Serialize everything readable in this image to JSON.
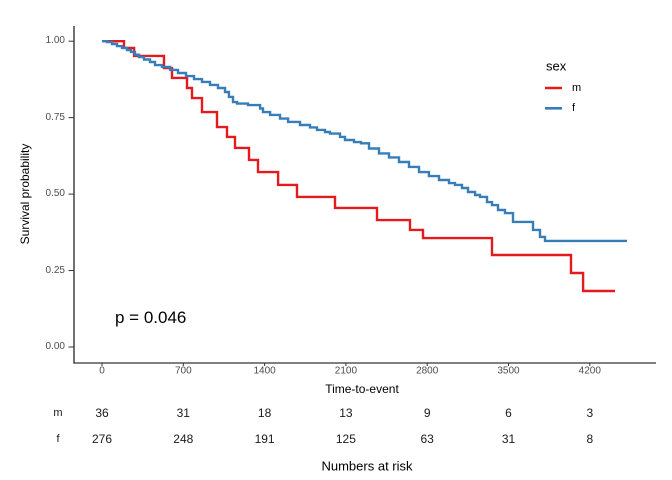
{
  "chart_data": {
    "type": "line",
    "subtype": "kaplan_meier_step_curves",
    "title": "",
    "xlabel": "Time-to-event",
    "ylabel": "Survival probability",
    "x_ticks": [
      0,
      700,
      1400,
      2100,
      2800,
      3500,
      4200
    ],
    "x_tick_labels": [
      "0",
      "700",
      "1400",
      "2100",
      "2800",
      "3500",
      "4200"
    ],
    "y_ticks": [
      1.0,
      0.75,
      0.5,
      0.25,
      0.0
    ],
    "y_tick_labels": [
      "1.00",
      "0.75",
      "0.50",
      "0.25",
      "0.00"
    ],
    "xlim": [
      0,
      4520
    ],
    "ylim": [
      0,
      1
    ],
    "grid": false,
    "legend": {
      "title": "sex",
      "position": "right",
      "items": [
        {
          "label": "m",
          "color": "#E41A1C"
        },
        {
          "label": "f",
          "color": "#377EB8"
        }
      ]
    },
    "annotation": {
      "p_value": "p = 0.046"
    },
    "series": [
      {
        "name": "m",
        "color": "#E41A1C",
        "points": [
          [
            0,
            1.0
          ],
          [
            189,
            0.978
          ],
          [
            276,
            0.952
          ],
          [
            534,
            0.912
          ],
          [
            603,
            0.88
          ],
          [
            732,
            0.847
          ],
          [
            775,
            0.814
          ],
          [
            861,
            0.768
          ],
          [
            990,
            0.719
          ],
          [
            1076,
            0.687
          ],
          [
            1145,
            0.651
          ],
          [
            1266,
            0.612
          ],
          [
            1343,
            0.572
          ],
          [
            1516,
            0.53
          ],
          [
            1679,
            0.491
          ],
          [
            2006,
            0.455
          ],
          [
            2368,
            0.415
          ],
          [
            2652,
            0.383
          ],
          [
            2764,
            0.356
          ],
          [
            3358,
            0.301
          ],
          [
            4038,
            0.242
          ],
          [
            4142,
            0.183
          ],
          [
            4417,
            0.183
          ]
        ]
      },
      {
        "name": "f",
        "color": "#377EB8",
        "points": [
          [
            0,
            1.0
          ],
          [
            43,
            0.997
          ],
          [
            86,
            0.991
          ],
          [
            129,
            0.984
          ],
          [
            172,
            0.978
          ],
          [
            215,
            0.971
          ],
          [
            250,
            0.965
          ],
          [
            284,
            0.956
          ],
          [
            319,
            0.948
          ],
          [
            362,
            0.94
          ],
          [
            413,
            0.932
          ],
          [
            456,
            0.922
          ],
          [
            517,
            0.916
          ],
          [
            586,
            0.906
          ],
          [
            654,
            0.896
          ],
          [
            723,
            0.886
          ],
          [
            792,
            0.876
          ],
          [
            861,
            0.867
          ],
          [
            930,
            0.857
          ],
          [
            999,
            0.847
          ],
          [
            1059,
            0.834
          ],
          [
            1093,
            0.818
          ],
          [
            1128,
            0.801
          ],
          [
            1163,
            0.796
          ],
          [
            1257,
            0.791
          ],
          [
            1361,
            0.78
          ],
          [
            1386,
            0.768
          ],
          [
            1447,
            0.759
          ],
          [
            1533,
            0.747
          ],
          [
            1602,
            0.736
          ],
          [
            1705,
            0.726
          ],
          [
            1791,
            0.718
          ],
          [
            1851,
            0.71
          ],
          [
            1920,
            0.703
          ],
          [
            1963,
            0.698
          ],
          [
            2049,
            0.687
          ],
          [
            2092,
            0.677
          ],
          [
            2170,
            0.67
          ],
          [
            2230,
            0.666
          ],
          [
            2299,
            0.649
          ],
          [
            2385,
            0.633
          ],
          [
            2471,
            0.62
          ],
          [
            2557,
            0.605
          ],
          [
            2643,
            0.589
          ],
          [
            2729,
            0.572
          ],
          [
            2815,
            0.559
          ],
          [
            2902,
            0.546
          ],
          [
            2988,
            0.536
          ],
          [
            3039,
            0.53
          ],
          [
            3100,
            0.52
          ],
          [
            3151,
            0.507
          ],
          [
            3212,
            0.497
          ],
          [
            3255,
            0.491
          ],
          [
            3315,
            0.474
          ],
          [
            3358,
            0.464
          ],
          [
            3410,
            0.448
          ],
          [
            3470,
            0.438
          ],
          [
            3539,
            0.409
          ],
          [
            3711,
            0.383
          ],
          [
            3771,
            0.36
          ],
          [
            3814,
            0.347
          ],
          [
            4520,
            0.347
          ]
        ]
      }
    ],
    "risk_table": {
      "caption": "Numbers at risk",
      "time_points": [
        0,
        700,
        1400,
        2100,
        2800,
        3500,
        4200
      ],
      "rows": [
        {
          "label": "m",
          "values": [
            "36",
            "31",
            "18",
            "13",
            "9",
            "6",
            "3"
          ]
        },
        {
          "label": "f",
          "values": [
            "276",
            "248",
            "191",
            "125",
            "63",
            "31",
            "8"
          ]
        }
      ]
    }
  }
}
